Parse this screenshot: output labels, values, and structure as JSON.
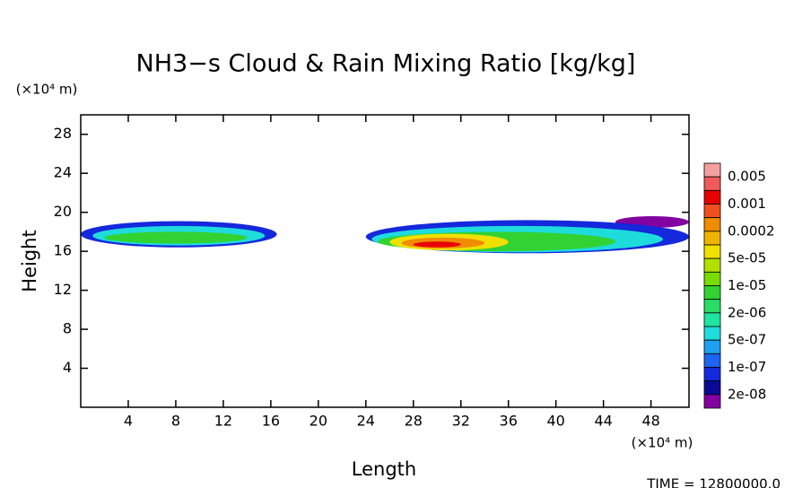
{
  "chart_data": {
    "type": "contour",
    "title": "NH3−s Cloud & Rain Mixing Ratio [kg/kg]",
    "x_label": "Length",
    "y_label": "Height",
    "x_unit": "(×10⁴ m)",
    "y_unit": "(×10⁴ m)",
    "footer": "TIME = 12800000.0",
    "xlim": [
      0,
      51.2
    ],
    "ylim": [
      0,
      30
    ],
    "xticks": [
      4,
      8,
      12,
      16,
      20,
      24,
      28,
      32,
      36,
      40,
      44,
      48
    ],
    "yticks": [
      4,
      8,
      12,
      16,
      20,
      24,
      28
    ],
    "colorbar": {
      "colors": [
        "#f4a0a0",
        "#f05a5a",
        "#e80000",
        "#f05020",
        "#f08c00",
        "#f0b400",
        "#f0e000",
        "#b4e000",
        "#78dc00",
        "#32d232",
        "#28dc64",
        "#1ee6a0",
        "#1edcdc",
        "#1ea0f0",
        "#1e64f0",
        "#1428dc",
        "#0a0a96",
        "#8200a0"
      ],
      "labels": [
        "0.005",
        "0.001",
        "0.0002",
        "5e-05",
        "1e-05",
        "2e-06",
        "5e-07",
        "1e-07",
        "2e-08"
      ]
    },
    "regions": [
      {
        "x": [
          0,
          16.5
        ],
        "y": [
          16.4,
          19.1
        ],
        "level": 15
      },
      {
        "x": [
          1,
          15.5
        ],
        "y": [
          16.6,
          18.6
        ],
        "level": 12
      },
      {
        "x": [
          2,
          14
        ],
        "y": [
          16.8,
          18.0
        ],
        "level": 9
      },
      {
        "x": [
          45,
          51.2
        ],
        "y": [
          18.4,
          19.6
        ],
        "level": 17
      },
      {
        "x": [
          24,
          51.2
        ],
        "y": [
          15.8,
          19.2
        ],
        "level": 15
      },
      {
        "x": [
          24.5,
          49
        ],
        "y": [
          15.9,
          18.6
        ],
        "level": 12
      },
      {
        "x": [
          25,
          45
        ],
        "y": [
          16.0,
          18.0
        ],
        "level": 9
      },
      {
        "x": [
          26,
          36
        ],
        "y": [
          16.1,
          17.8
        ],
        "level": 6
      },
      {
        "x": [
          27,
          34
        ],
        "y": [
          16.3,
          17.4
        ],
        "level": 4
      },
      {
        "x": [
          28,
          32
        ],
        "y": [
          16.4,
          17.0
        ],
        "level": 2
      }
    ]
  }
}
